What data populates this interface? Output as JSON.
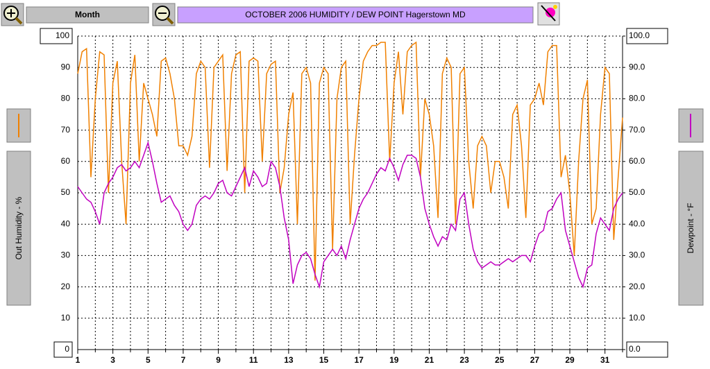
{
  "chart_data": {
    "type": "line",
    "title": "OCTOBER  2006  HUMIDITY / DEW POINT  Hagerstown MD",
    "period_button": "Month",
    "ylabel": "Out Humidity - %",
    "y2label": "Dewpoint - °F",
    "x": [
      1,
      1.25,
      1.5,
      1.75,
      2,
      2.25,
      2.5,
      2.75,
      3,
      3.25,
      3.5,
      3.75,
      4,
      4.25,
      4.5,
      4.75,
      5,
      5.25,
      5.5,
      5.75,
      6,
      6.25,
      6.5,
      6.75,
      7,
      7.25,
      7.5,
      7.75,
      8,
      8.25,
      8.5,
      8.75,
      9,
      9.25,
      9.5,
      9.75,
      10,
      10.25,
      10.5,
      10.75,
      11,
      11.25,
      11.5,
      11.75,
      12,
      12.25,
      12.5,
      12.75,
      13,
      13.25,
      13.5,
      13.75,
      14,
      14.25,
      14.5,
      14.75,
      15,
      15.25,
      15.5,
      15.75,
      16,
      16.25,
      16.5,
      16.75,
      17,
      17.25,
      17.5,
      17.75,
      18,
      18.25,
      18.5,
      18.75,
      19,
      19.25,
      19.5,
      19.75,
      20,
      20.25,
      20.5,
      20.75,
      21,
      21.25,
      21.5,
      21.75,
      22,
      22.25,
      22.5,
      22.75,
      23,
      23.25,
      23.5,
      23.75,
      24,
      24.25,
      24.5,
      24.75,
      25,
      25.25,
      25.5,
      25.75,
      26,
      26.25,
      26.5,
      26.75,
      27,
      27.25,
      27.5,
      27.75,
      28,
      28.25,
      28.5,
      28.75,
      29,
      29.25,
      29.5,
      29.75,
      30,
      30.25,
      30.5,
      30.75,
      31,
      31.25,
      31.5,
      31.75,
      32
    ],
    "series": [
      {
        "color": "#f08000",
        "values": [
          88,
          95,
          96,
          55,
          80,
          95,
          94,
          50,
          85,
          92,
          60,
          40,
          85,
          94,
          60,
          85,
          80,
          75,
          68,
          92,
          93,
          88,
          80,
          65,
          65,
          62,
          68,
          88,
          92,
          90,
          58,
          90,
          92,
          94,
          57,
          88,
          94,
          95,
          50,
          92,
          93,
          92,
          60,
          88,
          91,
          92,
          50,
          58,
          75,
          82,
          40,
          88,
          90,
          85,
          22,
          85,
          90,
          88,
          32,
          80,
          90,
          92,
          40,
          62,
          80,
          92,
          95,
          97,
          97,
          98,
          98,
          60,
          85,
          95,
          75,
          95,
          97,
          98,
          55,
          80,
          75,
          65,
          42,
          88,
          93,
          90,
          40,
          88,
          90,
          60,
          45,
          65,
          68,
          65,
          50,
          60,
          60,
          55,
          45,
          75,
          78,
          65,
          42,
          78,
          80,
          85,
          78,
          95,
          97,
          97,
          55,
          62,
          50,
          30,
          60,
          80,
          86,
          40,
          45,
          75,
          90,
          88,
          35,
          55,
          74
        ]
      },
      {
        "color": "#c000c0",
        "axis": "y2",
        "values": [
          52,
          50,
          48,
          47,
          44,
          40,
          50,
          53,
          55,
          58,
          59,
          57,
          58,
          60,
          58,
          62,
          66,
          60,
          53,
          47,
          48,
          49,
          46,
          44,
          40,
          38,
          40,
          46,
          48,
          49,
          48,
          50,
          53,
          54,
          50,
          49,
          52,
          55,
          58,
          52,
          57,
          55,
          52,
          53,
          60,
          58,
          52,
          42,
          35,
          21,
          27,
          30,
          31,
          29,
          24,
          20,
          28,
          30,
          32,
          30,
          33,
          29,
          35,
          40,
          45,
          48,
          50,
          53,
          56,
          58,
          57,
          61,
          58,
          54,
          59,
          62,
          62,
          61,
          55,
          45,
          40,
          36,
          33,
          36,
          35,
          40,
          38,
          48,
          50,
          40,
          32,
          28,
          26,
          27,
          28,
          27,
          27,
          28,
          29,
          28,
          29,
          30,
          30,
          28,
          33,
          37,
          38,
          44,
          45,
          48,
          50,
          38,
          33,
          28,
          23,
          20,
          26,
          27,
          37,
          42,
          40,
          38,
          45,
          48,
          50
        ]
      }
    ],
    "xlim": [
      1,
      32
    ],
    "xticks": [
      1,
      3,
      5,
      7,
      9,
      11,
      13,
      15,
      17,
      19,
      21,
      23,
      25,
      27,
      29,
      31
    ],
    "xminor": [
      2,
      4,
      6,
      8,
      10,
      12,
      14,
      16,
      18,
      20,
      22,
      24,
      26,
      28,
      30,
      32
    ],
    "ylim": [
      0,
      100
    ],
    "yticks": [
      0,
      10,
      20,
      30,
      40,
      50,
      60,
      70,
      80,
      90,
      100
    ],
    "y2lim": [
      0,
      100
    ],
    "y2ticks": [
      {
        "value": 0,
        "label": "0.0"
      },
      {
        "value": 10,
        "label": "10.0"
      },
      {
        "value": 20,
        "label": "20.0"
      },
      {
        "value": 30,
        "label": "30.0"
      },
      {
        "value": 40,
        "label": "40.0"
      },
      {
        "value": 50,
        "label": "50.0"
      },
      {
        "value": 60,
        "label": "60.0"
      },
      {
        "value": 70,
        "label": "70.0"
      },
      {
        "value": 80,
        "label": "80.0"
      },
      {
        "value": 90,
        "label": "90.0"
      },
      {
        "value": 100,
        "label": "100.0"
      }
    ],
    "grid": true
  }
}
